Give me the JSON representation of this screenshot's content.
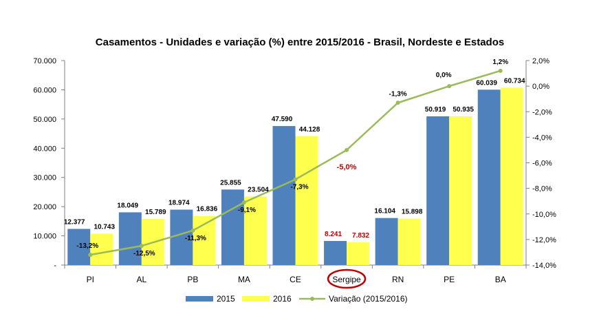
{
  "chart_data": {
    "type": "bar+line",
    "title": "Casamentos - Unidades e variação (%) entre 2015/2016 - Brasil, Nordeste e Estados",
    "categories": [
      "PI",
      "AL",
      "PB",
      "MA",
      "CE",
      "Sergipe",
      "RN",
      "PE",
      "BA"
    ],
    "highlight_category": "Sergipe",
    "series": [
      {
        "name": "2015",
        "type": "bar",
        "axis": "left",
        "color": "#4f81bd",
        "values": [
          12377,
          18049,
          18974,
          25855,
          47590,
          8241,
          16104,
          50919,
          60039
        ],
        "labels": [
          "12.377",
          "18.049",
          "18.974",
          "25.855",
          "47.590",
          "8.241",
          "16.104",
          "50.919",
          "60.039"
        ]
      },
      {
        "name": "2016",
        "type": "bar",
        "axis": "right_none",
        "color": "#ffff4d",
        "values": [
          10743,
          15789,
          16836,
          23504,
          44128,
          7832,
          15898,
          50935,
          60734
        ],
        "labels": [
          "10.743",
          "15.789",
          "16.836",
          "23.504",
          "44.128",
          "7.832",
          "15.898",
          "50.935",
          "60.734"
        ]
      },
      {
        "name": "Variação (2015/2016)",
        "type": "line",
        "axis": "right",
        "color": "#9bbb59",
        "values": [
          -13.2,
          -12.5,
          -11.3,
          -9.1,
          -7.3,
          -5.0,
          -1.3,
          0.0,
          1.2
        ],
        "labels": [
          "-13,2%",
          "-12,5%",
          "-11,3%",
          "-9,1%",
          "-7,3%",
          "-5,0%",
          "-1,3%",
          "0,0%",
          "1,2%"
        ]
      }
    ],
    "left_axis": {
      "min": 0,
      "max": 70000,
      "step": 10000,
      "tick_labels": [
        "-",
        "10.000",
        "20.000",
        "30.000",
        "40.000",
        "50.000",
        "60.000",
        "70.000"
      ]
    },
    "right_axis": {
      "min": -14,
      "max": 2,
      "step": 2,
      "tick_labels": [
        "-14,0%",
        "-12,0%",
        "-10,0%",
        "-8,0%",
        "-6,0%",
        "-4,0%",
        "-2,0%",
        "0,0%",
        "2,0%"
      ]
    },
    "legend": {
      "position": "bottom",
      "entries": [
        "2015",
        "2016",
        "Variação (2015/2016)"
      ]
    },
    "highlight_color": "#c00000",
    "axis_color": "#7f7f7f"
  }
}
